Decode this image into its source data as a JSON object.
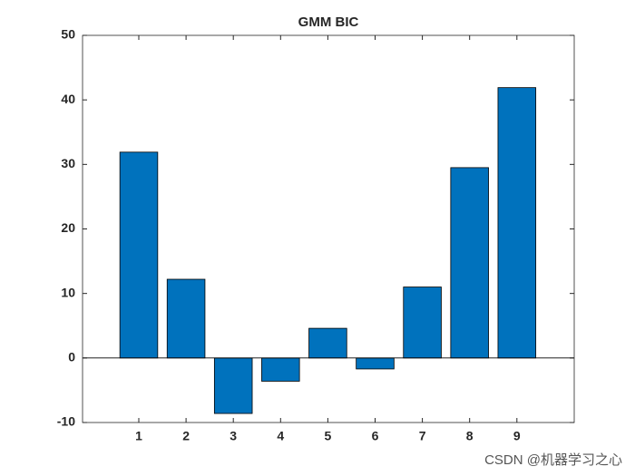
{
  "chart_data": {
    "type": "bar",
    "title": "GMM BIC",
    "categories": [
      "1",
      "2",
      "3",
      "4",
      "5",
      "6",
      "7",
      "8",
      "9"
    ],
    "values": [
      31.9,
      12.2,
      -8.6,
      -3.6,
      4.6,
      -1.7,
      11.0,
      29.5,
      41.9
    ],
    "color": "#0072bd",
    "ylim": [
      -10,
      50
    ],
    "yticks": [
      -10,
      0,
      10,
      20,
      30,
      40,
      50
    ],
    "grid": false
  },
  "watermark": "CSDN @机器学习之心"
}
